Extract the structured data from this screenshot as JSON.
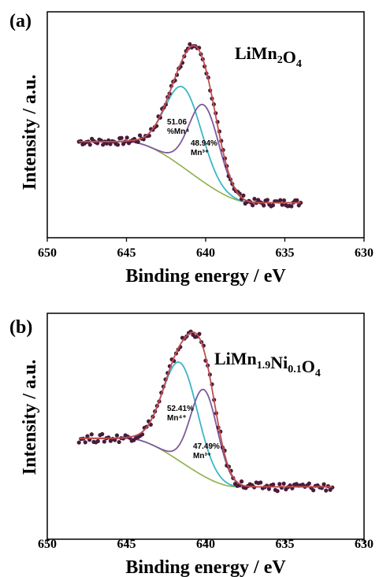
{
  "chart_data": [
    {
      "panel_label": "(a)",
      "type": "line",
      "xlim": [
        650,
        630
      ],
      "xticks": [
        "650",
        "645",
        "640",
        "635",
        "630"
      ],
      "xlabel": "Binding energy / eV",
      "ylabel": "Intensity / a.u.",
      "compound": {
        "parts": [
          {
            "t": "LiMn",
            "sub": false
          },
          {
            "t": "2",
            "sub": true
          },
          {
            "t": "O",
            "sub": false
          },
          {
            "t": "4",
            "sub": true
          }
        ]
      },
      "annotations": [
        {
          "lines": [
            "51.06",
            "%Mn⁴"
          ]
        },
        {
          "lines": [
            "48.94%",
            "Mn³⁺"
          ]
        }
      ],
      "data_range": [
        648,
        634
      ],
      "background": {
        "start": 645,
        "end": 637,
        "h0": 0.46,
        "hEnd": 0.04
      },
      "components": [
        {
          "name": "Mn⁴⁺",
          "center": 641.4,
          "width": 1.15,
          "amp": 0.55,
          "color": "#3bb5c8"
        },
        {
          "name": "Mn³⁺",
          "center": 640.1,
          "width": 0.95,
          "amp": 0.53,
          "color": "#7d5a9c"
        }
      ],
      "colors": {
        "envelope": "#c0504d",
        "background": "#8db048",
        "points": "#4a1a3a"
      }
    },
    {
      "panel_label": "(b)",
      "type": "line",
      "xlim": [
        650,
        630
      ],
      "xticks": [
        "650",
        "645",
        "640",
        "635",
        "630"
      ],
      "xlabel": "Binding energy / eV",
      "ylabel": "Intensity / a.u.",
      "compound": {
        "parts": [
          {
            "t": "LiMn",
            "sub": false
          },
          {
            "t": "1.9",
            "sub": true
          },
          {
            "t": "Ni",
            "sub": false
          },
          {
            "t": "0.1",
            "sub": true
          },
          {
            "t": "O",
            "sub": false
          },
          {
            "t": "4",
            "sub": true
          }
        ]
      },
      "annotations": [
        {
          "lines": [
            "52.41%",
            "Mn⁴⁺"
          ]
        },
        {
          "lines": [
            "47.49%",
            "Mn³⁺"
          ]
        }
      ],
      "data_range": [
        648,
        632
      ],
      "background": {
        "start": 645,
        "end": 638,
        "h0": 0.36,
        "hEnd": 0.08
      },
      "components": [
        {
          "name": "Mn⁴⁺",
          "center": 641.6,
          "width": 1.1,
          "amp": 0.57,
          "color": "#3bb5c8"
        },
        {
          "name": "Mn³⁺",
          "center": 640.1,
          "width": 0.85,
          "amp": 0.5,
          "color": "#7d5a9c"
        }
      ],
      "colors": {
        "envelope": "#c0504d",
        "background": "#8db048",
        "points": "#4a1a3a"
      }
    }
  ]
}
